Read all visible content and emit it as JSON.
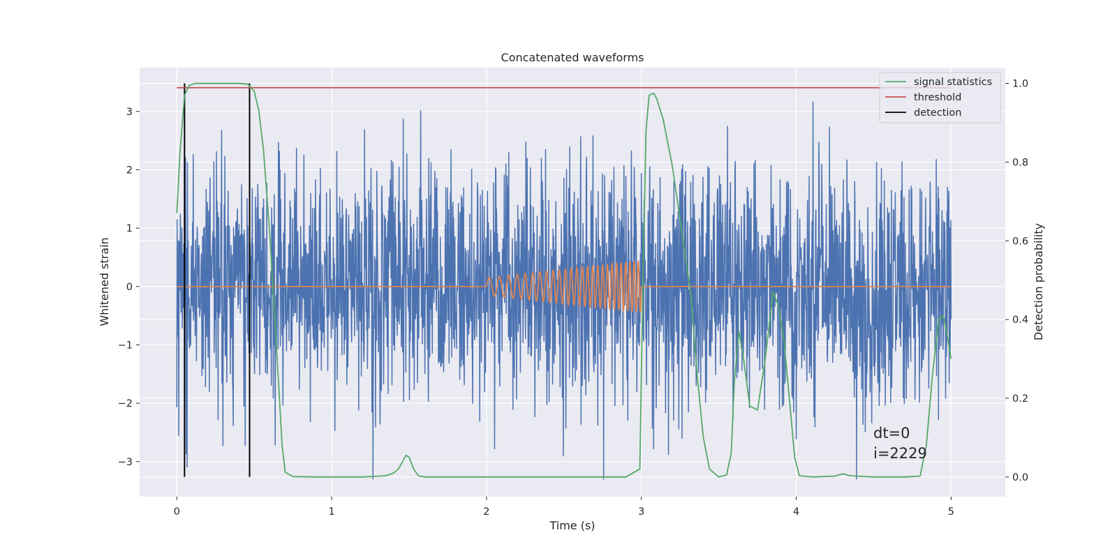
{
  "chart_data": {
    "type": "line",
    "title": "Concatenated waveforms",
    "xlabel": "Time (s)",
    "ylabel": "Whitened strain",
    "y2label": "Detection probability",
    "xlim": [
      -0.24,
      5.35
    ],
    "ylim": [
      -3.6,
      3.75
    ],
    "y2lim": [
      -0.05,
      1.04
    ],
    "xticks": [
      0,
      1,
      2,
      3,
      4,
      5
    ],
    "yticks": [
      -3,
      -2,
      -1,
      0,
      1,
      2,
      3
    ],
    "y2ticks": [
      0.0,
      0.2,
      0.4,
      0.6,
      0.8,
      1.0
    ],
    "xtick_labels": [
      "0",
      "1",
      "2",
      "3",
      "4",
      "5"
    ],
    "ytick_labels": [
      "−3",
      "−2",
      "−1",
      "0",
      "1",
      "2",
      "3"
    ],
    "y2tick_labels": [
      "0.0",
      "0.2",
      "0.4",
      "0.6",
      "0.8",
      "1.0"
    ],
    "grid": true,
    "legend_position": "top-right",
    "series": [
      {
        "name": "",
        "axis": "left",
        "style": "noise",
        "color": "#4c72b0",
        "x_range": [
          0,
          5
        ],
        "typical_amplitude": 1.0,
        "max_amplitude": 3.3
      },
      {
        "name": "",
        "axis": "left",
        "style": "chirp",
        "color": "#dd8452",
        "x_range": [
          0,
          5
        ],
        "chirp_start": 2.0,
        "chirp_end": 3.0,
        "amplitude_start": 0.15,
        "amplitude_end": 0.45,
        "freq_start": 14,
        "freq_end": 38
      },
      {
        "name": "signal statistics",
        "axis": "right",
        "color": "#55a868",
        "x": [
          0.0,
          0.02,
          0.05,
          0.08,
          0.12,
          0.2,
          0.3,
          0.4,
          0.46,
          0.5,
          0.53,
          0.56,
          0.6,
          0.63,
          0.66,
          0.68,
          0.7,
          0.75,
          0.9,
          1.2,
          1.35,
          1.4,
          1.43,
          1.46,
          1.48,
          1.5,
          1.53,
          1.56,
          1.6,
          1.8,
          2.5,
          2.9,
          2.99,
          3.01,
          3.03,
          3.05,
          3.08,
          3.1,
          3.14,
          3.2,
          3.27,
          3.32,
          3.36,
          3.4,
          3.44,
          3.5,
          3.55,
          3.58,
          3.6,
          3.63,
          3.66,
          3.7,
          3.75,
          3.8,
          3.85,
          3.88,
          3.92,
          3.96,
          3.99,
          4.02,
          4.1,
          4.25,
          4.3,
          4.35,
          4.5,
          4.7,
          4.8,
          4.84,
          4.88,
          4.92,
          4.95,
          4.97,
          5.0
        ],
        "y": [
          0.67,
          0.82,
          0.97,
          0.995,
          1.0,
          1.0,
          1.0,
          1.0,
          0.998,
          0.98,
          0.93,
          0.83,
          0.62,
          0.42,
          0.22,
          0.08,
          0.012,
          0.001,
          0.0,
          0.0,
          0.003,
          0.01,
          0.02,
          0.04,
          0.055,
          0.05,
          0.02,
          0.003,
          0.0,
          0.0,
          0.0,
          0.0,
          0.02,
          0.5,
          0.88,
          0.97,
          0.975,
          0.96,
          0.91,
          0.79,
          0.6,
          0.46,
          0.26,
          0.1,
          0.02,
          0.0,
          0.005,
          0.06,
          0.24,
          0.37,
          0.3,
          0.18,
          0.17,
          0.3,
          0.47,
          0.44,
          0.35,
          0.18,
          0.05,
          0.003,
          0.0,
          0.002,
          0.008,
          0.003,
          0.0,
          0.0,
          0.002,
          0.08,
          0.26,
          0.4,
          0.41,
          0.37,
          0.3
        ]
      },
      {
        "name": "threshold",
        "axis": "right",
        "color": "#c44e52",
        "x": [
          0,
          5
        ],
        "y": [
          0.989,
          0.989
        ]
      },
      {
        "name": "detection",
        "axis": "right",
        "style": "vlines",
        "color": "#000000",
        "x": [
          0.05,
          0.47
        ],
        "y_range": [
          0.0,
          1.0
        ]
      }
    ],
    "annotations": [
      "dt=0",
      "i=2229"
    ]
  }
}
